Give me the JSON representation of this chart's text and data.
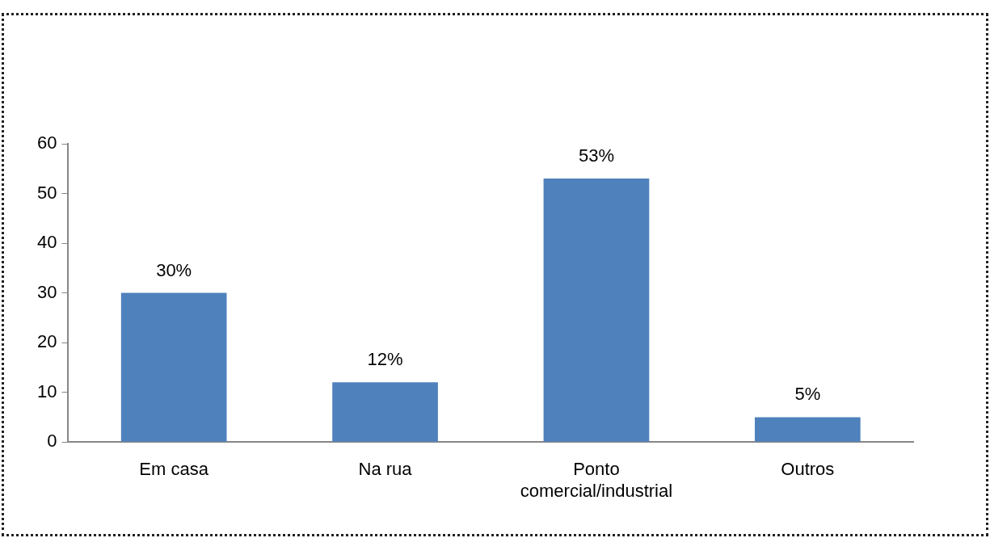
{
  "chart_data": {
    "type": "bar",
    "categories": [
      "Em casa",
      "Na rua",
      "Ponto comercial/industrial",
      "Outros"
    ],
    "values": [
      30,
      12,
      53,
      5
    ],
    "value_labels": [
      "30%",
      "12%",
      "53%",
      "5%"
    ],
    "color": "#4f81bd",
    "ylim": [
      0,
      60
    ],
    "yticks": [
      0,
      10,
      20,
      30,
      40,
      50,
      60
    ],
    "grid": false,
    "legend": false
  }
}
